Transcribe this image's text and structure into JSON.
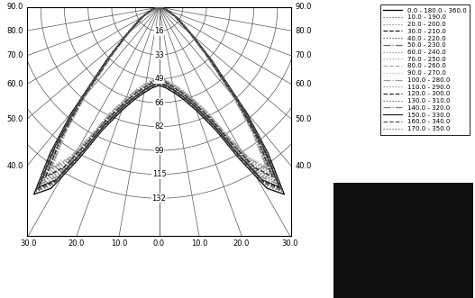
{
  "chart_data": {
    "type": "polar_intensity",
    "xlim": [
      -92,
      92
    ],
    "ylim": [
      0,
      158
    ],
    "grid": true,
    "legend": "upper right",
    "intensity_ticks": [
      {
        "value": 16.5,
        "label": "16"
      },
      33,
      {
        "value": 49.5,
        "label": "49"
      },
      66,
      {
        "value": 82.5,
        "label": "82"
      },
      99,
      {
        "value": 115.5,
        "label": "115"
      },
      132
    ],
    "angle_ticks": [
      {
        "value": 0,
        "label": "0.0"
      },
      {
        "value": 10,
        "label": "10.0"
      },
      {
        "value": 20,
        "label": "20.0"
      },
      {
        "value": 30,
        "label": "30.0"
      },
      {
        "value": 40,
        "label": "40.0"
      },
      {
        "value": 50,
        "label": "50.0"
      },
      {
        "value": 60,
        "label": "60.0"
      },
      {
        "value": 70,
        "label": "70.0"
      },
      {
        "value": 80,
        "label": "80.0"
      },
      {
        "value": 90,
        "label": "90.0"
      }
    ],
    "angles": [
      0,
      5,
      10,
      15,
      20,
      25,
      28,
      31,
      34,
      37,
      40,
      45,
      50,
      60,
      70,
      80,
      90
    ],
    "series": [
      {
        "name": "0.0 - 180.0 - 360.0",
        "color": "#000000",
        "line_style": "solid",
        "values": [
          54,
          56,
          60,
          66,
          76,
          94,
          118,
          146,
          156,
          126,
          94,
          52,
          30,
          14,
          6,
          2,
          0
        ]
      },
      {
        "name": "10.0 - 190.0",
        "color": "#555555",
        "line_style": "dotted",
        "values": [
          53,
          55,
          59,
          64,
          74,
          91,
          114,
          141,
          152,
          122,
          90,
          50,
          31,
          15,
          6,
          2,
          0
        ]
      },
      {
        "name": "20.0 - 200.0",
        "color": "#777777",
        "line_style": "dotted",
        "values": [
          52,
          54,
          58,
          63,
          72,
          89,
          111,
          138,
          149,
          119,
          88,
          49,
          30,
          14,
          6,
          2,
          0
        ]
      },
      {
        "name": "30.0 - 210.0",
        "color": "#111111",
        "line_style": "dashed",
        "values": [
          53,
          55,
          58,
          64,
          73,
          90,
          112,
          140,
          151,
          121,
          89,
          50,
          31,
          15,
          6,
          2,
          0
        ]
      },
      {
        "name": "40.0 - 220.0",
        "color": "#444444",
        "line_style": "dotted",
        "values": [
          51,
          53,
          57,
          62,
          71,
          87,
          108,
          134,
          145,
          116,
          86,
          48,
          29,
          14,
          5,
          2,
          0
        ]
      },
      {
        "name": "50.0 - 230.0",
        "color": "#666666",
        "line_style": "dashdot",
        "values": [
          50,
          52,
          56,
          61,
          70,
          85,
          105,
          130,
          142,
          114,
          84,
          47,
          29,
          13,
          5,
          2,
          0
        ]
      },
      {
        "name": "60.0 - 240.0",
        "color": "#888888",
        "line_style": "dotted",
        "values": [
          50,
          52,
          55,
          60,
          69,
          84,
          103,
          127,
          139,
          112,
          83,
          46,
          28,
          13,
          5,
          2,
          0
        ]
      },
      {
        "name": "70.0 - 250.0",
        "color": "#999999",
        "line_style": "dotted",
        "values": [
          49,
          51,
          54,
          59,
          68,
          82,
          101,
          124,
          136,
          110,
          81,
          45,
          28,
          13,
          5,
          2,
          0
        ]
      },
      {
        "name": "80.0 - 260.0",
        "color": "#aaaaaa",
        "line_style": "dashed",
        "values": [
          49,
          51,
          54,
          59,
          67,
          81,
          100,
          122,
          134,
          108,
          80,
          45,
          27,
          12,
          5,
          1,
          0
        ]
      },
      {
        "name": "90.0 - 270.0",
        "color": "#bbbbbb",
        "line_style": "dotted",
        "values": [
          48,
          50,
          53,
          58,
          66,
          80,
          98,
          120,
          132,
          107,
          79,
          44,
          27,
          12,
          5,
          1,
          0
        ]
      },
      {
        "name": "100.0 - 280.0",
        "color": "#999999",
        "line_style": "dashdot",
        "values": [
          49,
          51,
          54,
          59,
          67,
          81,
          100,
          122,
          135,
          109,
          80,
          45,
          27,
          12,
          5,
          1,
          0
        ]
      },
      {
        "name": "110.0 - 290.0",
        "color": "#888888",
        "line_style": "dotted",
        "values": [
          49,
          51,
          55,
          60,
          68,
          83,
          102,
          125,
          137,
          111,
          82,
          46,
          28,
          13,
          5,
          2,
          0
        ]
      },
      {
        "name": "120.0 - 300.0",
        "color": "#222222",
        "line_style": "dashed",
        "values": [
          50,
          52,
          56,
          61,
          70,
          85,
          105,
          129,
          141,
          114,
          84,
          47,
          29,
          13,
          5,
          2,
          0
        ]
      },
      {
        "name": "130.0 - 310.0",
        "color": "#666666",
        "line_style": "dotted",
        "values": [
          51,
          53,
          57,
          62,
          71,
          87,
          107,
          132,
          144,
          116,
          86,
          48,
          29,
          14,
          5,
          2,
          0
        ]
      },
      {
        "name": "140.0 - 320.0",
        "color": "#777777",
        "line_style": "dashdot",
        "values": [
          52,
          54,
          58,
          63,
          72,
          88,
          110,
          136,
          147,
          118,
          87,
          49,
          30,
          14,
          6,
          2,
          0
        ]
      },
      {
        "name": "150.0 - 330.0",
        "color": "#222222",
        "line_style": "solid",
        "values": [
          52,
          54,
          58,
          64,
          73,
          90,
          112,
          139,
          150,
          120,
          89,
          50,
          30,
          14,
          6,
          2,
          0
        ]
      },
      {
        "name": "160.0 - 340.0",
        "color": "#555555",
        "line_style": "dashed",
        "values": [
          53,
          55,
          59,
          65,
          74,
          92,
          115,
          142,
          153,
          123,
          91,
          51,
          31,
          15,
          6,
          2,
          0
        ]
      },
      {
        "name": "170.0 - 350.0",
        "color": "#666666",
        "line_style": "dotted",
        "values": [
          53,
          55,
          59,
          65,
          75,
          93,
          116,
          144,
          154,
          124,
          92,
          51,
          31,
          15,
          6,
          2,
          0
        ]
      }
    ]
  }
}
